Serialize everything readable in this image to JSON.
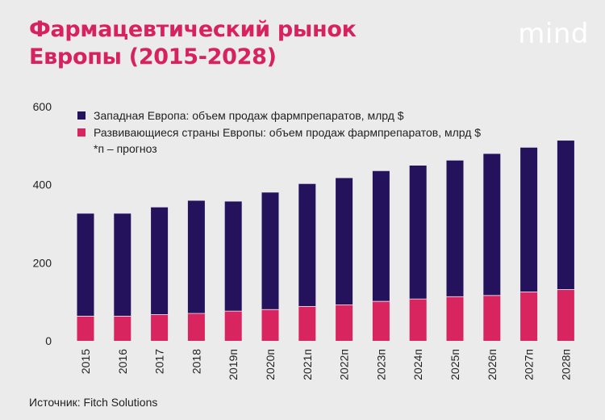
{
  "header": {
    "title_line1": "Фармацевтический рынок",
    "title_line2": "Европы (2015-2028)",
    "logo": "mind"
  },
  "footer": {
    "source": "Источник: Fitch Solutions"
  },
  "colors": {
    "western": "#24135c",
    "developing": "#d8245f",
    "background": "#ebebeb",
    "title": "#d8215f"
  },
  "legend": {
    "western": "Западная Европа: объем продаж фармпрепаратов, млрд $",
    "developing": "Развивающиеся страны Европы: объем продаж фармпрепаратов, млрд $",
    "note": "*п – прогноз"
  },
  "chart_data": {
    "type": "bar",
    "stacked": true,
    "categories": [
      "2015",
      "2016",
      "2017",
      "2018",
      "2019п",
      "2020п",
      "2021п",
      "2022п",
      "2023п",
      "2024п",
      "2025п",
      "2026п",
      "2027п",
      "2028п"
    ],
    "series": [
      {
        "name": "Развивающиеся страны Европы: объем продаж фармпрепаратов, млрд $",
        "values": [
          64,
          64,
          68,
          71,
          77,
          81,
          89,
          93,
          102,
          108,
          114,
          117,
          126,
          132
        ]
      },
      {
        "name": "Западная Европа: объем продаж фармпрепаратов, млрд $",
        "values": [
          262,
          262,
          274,
          288,
          280,
          299,
          313,
          324,
          333,
          341,
          348,
          362,
          369,
          381
        ]
      }
    ],
    "yticks": [
      0,
      200,
      400,
      600
    ],
    "ylim": [
      0,
      600
    ],
    "grid": false,
    "legend_position": "top-left"
  }
}
